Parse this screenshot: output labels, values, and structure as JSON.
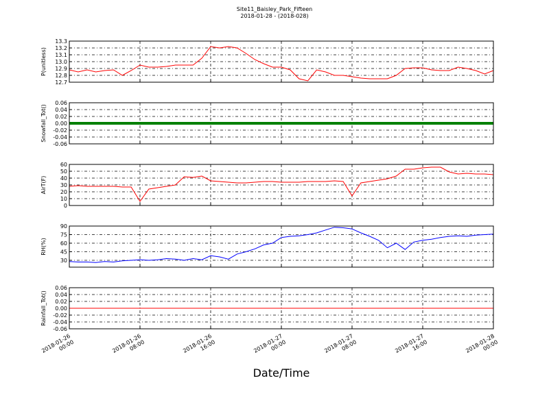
{
  "chart_data": {
    "type": "line",
    "title": "Site11_Baisley_Park_Fifteen",
    "subtitle": "2018-01-28 - (2018-028)",
    "x_label": "Date/Time",
    "xlim": [
      "2018-01-26 00:00",
      "2018-01-28 00:00"
    ],
    "xticks": [
      "2018-01-26 00:00",
      "2018-01-26 08:00",
      "2018-01-26 16:00",
      "2018-01-27 00:00",
      "2018-01-27 08:00",
      "2018-01-27 16:00",
      "2018-01-28 00:00"
    ],
    "x": [
      "2018-01-26 00:00",
      "2018-01-26 01:00",
      "2018-01-26 02:00",
      "2018-01-26 03:00",
      "2018-01-26 04:00",
      "2018-01-26 05:00",
      "2018-01-26 06:00",
      "2018-01-26 07:00",
      "2018-01-26 08:00",
      "2018-01-26 09:00",
      "2018-01-26 10:00",
      "2018-01-26 11:00",
      "2018-01-26 12:00",
      "2018-01-26 13:00",
      "2018-01-26 14:00",
      "2018-01-26 15:00",
      "2018-01-26 16:00",
      "2018-01-26 17:00",
      "2018-01-26 18:00",
      "2018-01-26 19:00",
      "2018-01-26 20:00",
      "2018-01-26 21:00",
      "2018-01-26 22:00",
      "2018-01-26 23:00",
      "2018-01-27 00:00",
      "2018-01-27 01:00",
      "2018-01-27 02:00",
      "2018-01-27 03:00",
      "2018-01-27 04:00",
      "2018-01-27 05:00",
      "2018-01-27 06:00",
      "2018-01-27 07:00",
      "2018-01-27 08:00",
      "2018-01-27 09:00",
      "2018-01-27 10:00",
      "2018-01-27 11:00",
      "2018-01-27 12:00",
      "2018-01-27 13:00",
      "2018-01-27 14:00",
      "2018-01-27 15:00",
      "2018-01-27 16:00",
      "2018-01-27 17:00",
      "2018-01-27 18:00",
      "2018-01-27 19:00",
      "2018-01-27 20:00",
      "2018-01-27 21:00",
      "2018-01-27 22:00",
      "2018-01-27 23:00",
      "2018-01-28 00:00"
    ],
    "grid": true,
    "panels": [
      {
        "y_label": "P(unitless)",
        "ylim": [
          12.7,
          13.3
        ],
        "yticks": [
          12.7,
          12.8,
          12.9,
          {
            "value": 13,
            "label": "13.0"
          },
          13.1,
          13.2,
          13.3
        ],
        "series": [
          {
            "color": "#ff0000",
            "values": [
              12.88,
              12.85,
              12.88,
              12.85,
              12.87,
              12.88,
              12.8,
              12.87,
              12.95,
              12.92,
              12.92,
              12.93,
              12.95,
              12.95,
              12.95,
              13.05,
              13.22,
              13.2,
              13.22,
              13.2,
              13.12,
              13.03,
              12.97,
              12.92,
              12.92,
              12.88,
              12.75,
              12.72,
              12.88,
              12.85,
              12.8,
              12.8,
              12.78,
              12.76,
              12.75,
              12.75,
              12.75,
              12.8,
              12.9,
              12.91,
              12.91,
              12.88,
              12.87,
              12.87,
              12.92,
              12.9,
              12.87,
              12.82,
              12.87
            ]
          }
        ]
      },
      {
        "y_label": "Snowfall_Tot()",
        "ylim": [
          -0.06,
          0.06
        ],
        "yticks": [
          -0.06,
          -0.04,
          -0.02,
          {
            "value": 0,
            "label": "0.00"
          },
          0.02,
          0.04,
          0.06
        ],
        "series": [
          {
            "color": "#008000",
            "width": 4,
            "values": [
              0,
              0,
              0,
              0,
              0,
              0,
              0,
              0,
              0,
              0,
              0,
              0,
              0,
              0,
              0,
              0,
              0,
              0,
              0,
              0,
              0,
              0,
              0,
              0,
              0,
              0,
              0,
              0,
              0,
              0,
              0,
              0,
              0,
              0,
              0,
              0,
              0,
              0,
              0,
              0,
              0,
              0,
              0,
              0,
              0,
              0,
              0,
              0,
              0
            ]
          }
        ]
      },
      {
        "y_label": "AirT(F)",
        "ylim": [
          0,
          60
        ],
        "yticks": [
          0,
          10,
          20,
          30,
          40,
          50,
          60
        ],
        "series": [
          {
            "color": "#ff0000",
            "values": [
              28,
              29,
              28,
              28,
              28,
              28,
              27,
              27,
              6,
              24,
              26,
              28,
              30,
              42,
              41,
              43,
              36,
              35,
              34,
              33,
              33,
              34,
              35,
              35,
              34,
              34,
              34,
              35,
              35,
              35,
              36,
              35,
              14,
              33,
              35,
              37,
              39,
              43,
              53,
              53,
              55,
              56,
              56,
              49,
              46,
              47,
              46,
              46,
              45
            ]
          }
        ]
      },
      {
        "y_label": "RH(%)",
        "ylim": [
          18,
          90
        ],
        "yticks": [
          30,
          45,
          60,
          75,
          90
        ],
        "series": [
          {
            "color": "#0000ff",
            "values": [
              28,
              27,
              27,
              26,
              28,
              27,
              29,
              30,
              31,
              30,
              31,
              33,
              32,
              30,
              33,
              31,
              38,
              36,
              32,
              41,
              45,
              50,
              57,
              60,
              70,
              72,
              73,
              75,
              78,
              83,
              88,
              87,
              85,
              78,
              72,
              65,
              52,
              60,
              49,
              62,
              65,
              67,
              70,
              72,
              73,
              72,
              74,
              75,
              76
            ]
          }
        ]
      },
      {
        "y_label": "Rainfall_Tot()",
        "ylim": [
          -0.06,
          0.06
        ],
        "yticks": [
          -0.06,
          -0.04,
          -0.02,
          {
            "value": 0,
            "label": "0.00"
          },
          0.02,
          0.04,
          0.06
        ],
        "series": [
          {
            "color": "#ff0000",
            "values": [
              0,
              0,
              0,
              0,
              0,
              0,
              0,
              0,
              0,
              0,
              0,
              0,
              0,
              0,
              0,
              0,
              0,
              0,
              0,
              0,
              0,
              0,
              0,
              0,
              0,
              0,
              0,
              0,
              0,
              0,
              0,
              0,
              0,
              0,
              0,
              0,
              0,
              0,
              0,
              0,
              0,
              0,
              0,
              0,
              0,
              0,
              0,
              0,
              0
            ]
          }
        ]
      }
    ]
  }
}
